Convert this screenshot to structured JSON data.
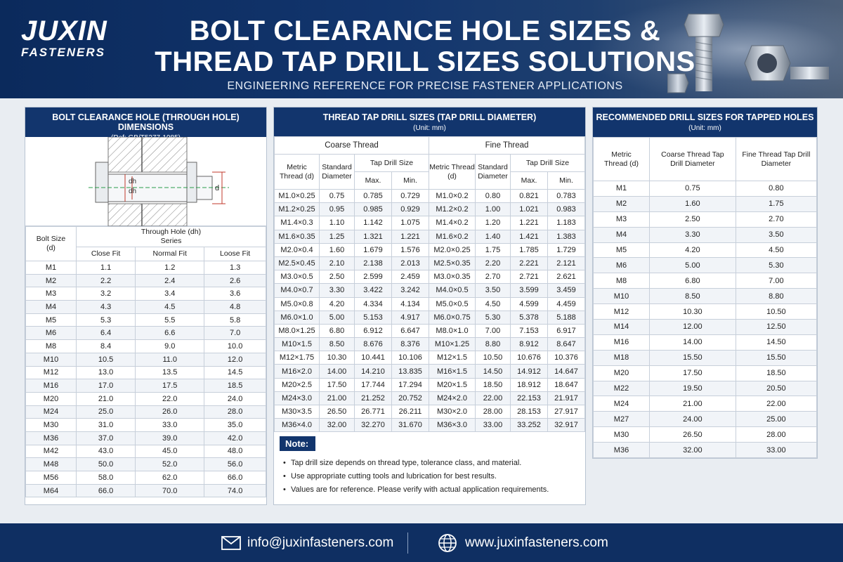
{
  "brand": {
    "name": "JUXIN",
    "tagline": "FASTENERS"
  },
  "title_line1": "BOLT CLEARANCE HOLE SIZES &",
  "title_line2": "THREAD TAP DRILL SIZES SOLUTIONS",
  "subtitle": "ENGINEERING REFERENCE FOR PRECISE FASTENER APPLICATIONS",
  "clearance": {
    "title": "BOLT CLEARANCE HOLE (THROUGH HOLE) DIMENSIONS",
    "ref": "(Ref: GB/T5277-1985)",
    "diagram_labels": {
      "dh": "dh",
      "dh2": "dh",
      "d": "d"
    },
    "col_bolt": "Bolt Size",
    "col_bolt_sub": "(d)",
    "col_hole": "Through Hole (dh)",
    "col_series": "Series",
    "cols": [
      "Close Fit",
      "Normal Fit",
      "Loose Fit"
    ],
    "rows": [
      [
        "M1",
        "1.1",
        "1.2",
        "1.3"
      ],
      [
        "M2",
        "2.2",
        "2.4",
        "2.6"
      ],
      [
        "M3",
        "3.2",
        "3.4",
        "3.6"
      ],
      [
        "M4",
        "4.3",
        "4.5",
        "4.8"
      ],
      [
        "M5",
        "5.3",
        "5.5",
        "5.8"
      ],
      [
        "M6",
        "6.4",
        "6.6",
        "7.0"
      ],
      [
        "M8",
        "8.4",
        "9.0",
        "10.0"
      ],
      [
        "M10",
        "10.5",
        "11.0",
        "12.0"
      ],
      [
        "M12",
        "13.0",
        "13.5",
        "14.5"
      ],
      [
        "M16",
        "17.0",
        "17.5",
        "18.5"
      ],
      [
        "M20",
        "21.0",
        "22.0",
        "24.0"
      ],
      [
        "M24",
        "25.0",
        "26.0",
        "28.0"
      ],
      [
        "M30",
        "31.0",
        "33.0",
        "35.0"
      ],
      [
        "M36",
        "37.0",
        "39.0",
        "42.0"
      ],
      [
        "M42",
        "43.0",
        "45.0",
        "48.0"
      ],
      [
        "M48",
        "50.0",
        "52.0",
        "56.0"
      ],
      [
        "M56",
        "58.0",
        "62.0",
        "66.0"
      ],
      [
        "M64",
        "66.0",
        "70.0",
        "74.0"
      ]
    ]
  },
  "tap": {
    "title": "THREAD TAP DRILL SIZES (TAP DRILL DIAMETER)",
    "unit": "(Unit: mm)",
    "coarse": "Coarse Thread",
    "fine": "Fine Thread",
    "metric": "Metric Thread (d)",
    "standard": "Standard Diameter",
    "tds": "Tap Drill Size",
    "max": "Max.",
    "min": "Min.",
    "rows": [
      [
        "M1.0×0.25",
        "0.75",
        "0.785",
        "0.729",
        "M1.0×0.2",
        "0.80",
        "0.821",
        "0.783"
      ],
      [
        "M1.2×0.25",
        "0.95",
        "0.985",
        "0.929",
        "M1.2×0.2",
        "1.00",
        "1.021",
        "0.983"
      ],
      [
        "M1.4×0.3",
        "1.10",
        "1.142",
        "1.075",
        "M1.4×0.2",
        "1.20",
        "1.221",
        "1.183"
      ],
      [
        "M1.6×0.35",
        "1.25",
        "1.321",
        "1.221",
        "M1.6×0.2",
        "1.40",
        "1.421",
        "1.383"
      ],
      [
        "M2.0×0.4",
        "1.60",
        "1.679",
        "1.576",
        "M2.0×0.25",
        "1.75",
        "1.785",
        "1.729"
      ],
      [
        "M2.5×0.45",
        "2.10",
        "2.138",
        "2.013",
        "M2.5×0.35",
        "2.20",
        "2.221",
        "2.121"
      ],
      [
        "M3.0×0.5",
        "2.50",
        "2.599",
        "2.459",
        "M3.0×0.35",
        "2.70",
        "2.721",
        "2.621"
      ],
      [
        "M4.0×0.7",
        "3.30",
        "3.422",
        "3.242",
        "M4.0×0.5",
        "3.50",
        "3.599",
        "3.459"
      ],
      [
        "M5.0×0.8",
        "4.20",
        "4.334",
        "4.134",
        "M5.0×0.5",
        "4.50",
        "4.599",
        "4.459"
      ],
      [
        "M6.0×1.0",
        "5.00",
        "5.153",
        "4.917",
        "M6.0×0.75",
        "5.30",
        "5.378",
        "5.188"
      ],
      [
        "M8.0×1.25",
        "6.80",
        "6.912",
        "6.647",
        "M8.0×1.0",
        "7.00",
        "7.153",
        "6.917"
      ],
      [
        "M10×1.5",
        "8.50",
        "8.676",
        "8.376",
        "M10×1.25",
        "8.80",
        "8.912",
        "8.647"
      ],
      [
        "M12×1.75",
        "10.30",
        "10.441",
        "10.106",
        "M12×1.5",
        "10.50",
        "10.676",
        "10.376"
      ],
      [
        "M16×2.0",
        "14.00",
        "14.210",
        "13.835",
        "M16×1.5",
        "14.50",
        "14.912",
        "14.647"
      ],
      [
        "M20×2.5",
        "17.50",
        "17.744",
        "17.294",
        "M20×1.5",
        "18.50",
        "18.912",
        "18.647"
      ],
      [
        "M24×3.0",
        "21.00",
        "21.252",
        "20.752",
        "M24×2.0",
        "22.00",
        "22.153",
        "21.917"
      ],
      [
        "M30×3.5",
        "26.50",
        "26.771",
        "26.211",
        "M30×2.0",
        "28.00",
        "28.153",
        "27.917"
      ],
      [
        "M36×4.0",
        "32.00",
        "32.270",
        "31.670",
        "M36×3.0",
        "33.00",
        "33.252",
        "32.917"
      ]
    ],
    "note_title": "Note:",
    "notes": [
      "Tap drill size depends on thread type, tolerance class, and material.",
      "Use appropriate cutting tools and lubrication for best results.",
      "Values are for reference. Please verify with actual application requirements."
    ]
  },
  "recommended": {
    "title": "RECOMMENDED DRILL SIZES FOR TAPPED HOLES",
    "unit": "(Unit: mm)",
    "col_metric": "Metric Thread (d)",
    "col_coarse": "Coarse Thread Tap Drill Diameter",
    "col_fine": "Fine Thread Tap Drill Diameter",
    "rows": [
      [
        "M1",
        "0.75",
        "0.80"
      ],
      [
        "M2",
        "1.60",
        "1.75"
      ],
      [
        "M3",
        "2.50",
        "2.70"
      ],
      [
        "M4",
        "3.30",
        "3.50"
      ],
      [
        "M5",
        "4.20",
        "4.50"
      ],
      [
        "M6",
        "5.00",
        "5.30"
      ],
      [
        "M8",
        "6.80",
        "7.00"
      ],
      [
        "M10",
        "8.50",
        "8.80"
      ],
      [
        "M12",
        "10.30",
        "10.50"
      ],
      [
        "M14",
        "12.00",
        "12.50"
      ],
      [
        "M16",
        "14.00",
        "14.50"
      ],
      [
        "M18",
        "15.50",
        "15.50"
      ],
      [
        "M20",
        "17.50",
        "18.50"
      ],
      [
        "M22",
        "19.50",
        "20.50"
      ],
      [
        "M24",
        "21.00",
        "22.00"
      ],
      [
        "M27",
        "24.00",
        "25.00"
      ],
      [
        "M30",
        "26.50",
        "28.00"
      ],
      [
        "M36",
        "32.00",
        "33.00"
      ]
    ]
  },
  "footer": {
    "email": "info@juxinfasteners.com",
    "website": "www.juxinfasteners.com",
    "email_icon": "envelope-icon",
    "web_icon": "globe-icon"
  }
}
